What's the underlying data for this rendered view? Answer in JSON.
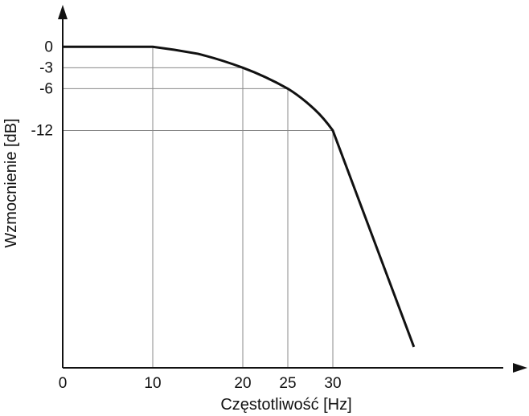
{
  "chart_data": {
    "type": "line",
    "title": "",
    "xlabel": "Częstotliwość [Hz]",
    "ylabel": "Wzmocnienie [dB]",
    "x_ticks": [
      {
        "value": 0,
        "label": "0"
      },
      {
        "value": 10,
        "label": "10"
      },
      {
        "value": 20,
        "label": "20"
      },
      {
        "value": 25,
        "label": "25"
      },
      {
        "value": 30,
        "label": "30"
      }
    ],
    "y_ticks": [
      {
        "value": 0,
        "label": "0"
      },
      {
        "value": -3,
        "label": "-3"
      },
      {
        "value": -6,
        "label": "-6"
      },
      {
        "value": -12,
        "label": "-12"
      }
    ],
    "xlim": [
      0,
      50
    ],
    "ylim": [
      -46,
      8
    ],
    "grid": "at labelled ticks only",
    "series": [
      {
        "points": [
          {
            "x": 0,
            "y": 0
          },
          {
            "x": 10,
            "y": 0
          },
          {
            "x": 15,
            "y": -1
          },
          {
            "x": 20,
            "y": -3
          },
          {
            "x": 25,
            "y": -6
          },
          {
            "x": 28,
            "y": -9
          },
          {
            "x": 30,
            "y": -12
          },
          {
            "x": 39,
            "y": -43
          }
        ]
      }
    ],
    "colors": {
      "curve": "#111111",
      "axis": "#111111",
      "grid": "#888888"
    }
  }
}
